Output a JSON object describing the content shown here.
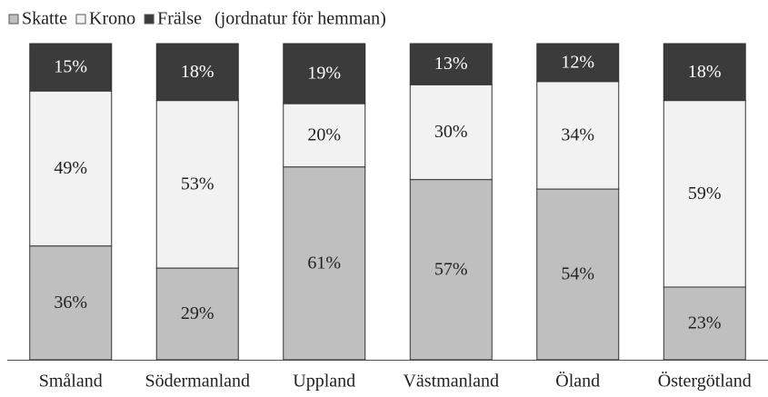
{
  "chart_data": {
    "type": "stacked_bar",
    "subtitle": "(jordnatur för hemman)",
    "categories": [
      "Småland",
      "Södermanland",
      "Uppland",
      "Västmanland",
      "Öland",
      "Östergötland"
    ],
    "series": [
      {
        "name": "Skatte",
        "color": "#bfbfbf",
        "values": [
          36,
          29,
          61,
          57,
          54,
          23
        ],
        "value_labels": [
          "36%",
          "29%",
          "61%",
          "57%",
          "54%",
          "23%"
        ]
      },
      {
        "name": "Krono",
        "color": "#f2f2f2",
        "values": [
          49,
          53,
          20,
          30,
          34,
          59
        ],
        "value_labels": [
          "49%",
          "53%",
          "20%",
          "30%",
          "34%",
          "59%"
        ]
      },
      {
        "name": "Frälse",
        "color": "#3b3b3b",
        "values": [
          15,
          18,
          19,
          13,
          12,
          18
        ],
        "value_labels": [
          "15%",
          "18%",
          "19%",
          "13%",
          "12%",
          "18%"
        ]
      }
    ],
    "ylim": [
      0,
      100
    ]
  }
}
